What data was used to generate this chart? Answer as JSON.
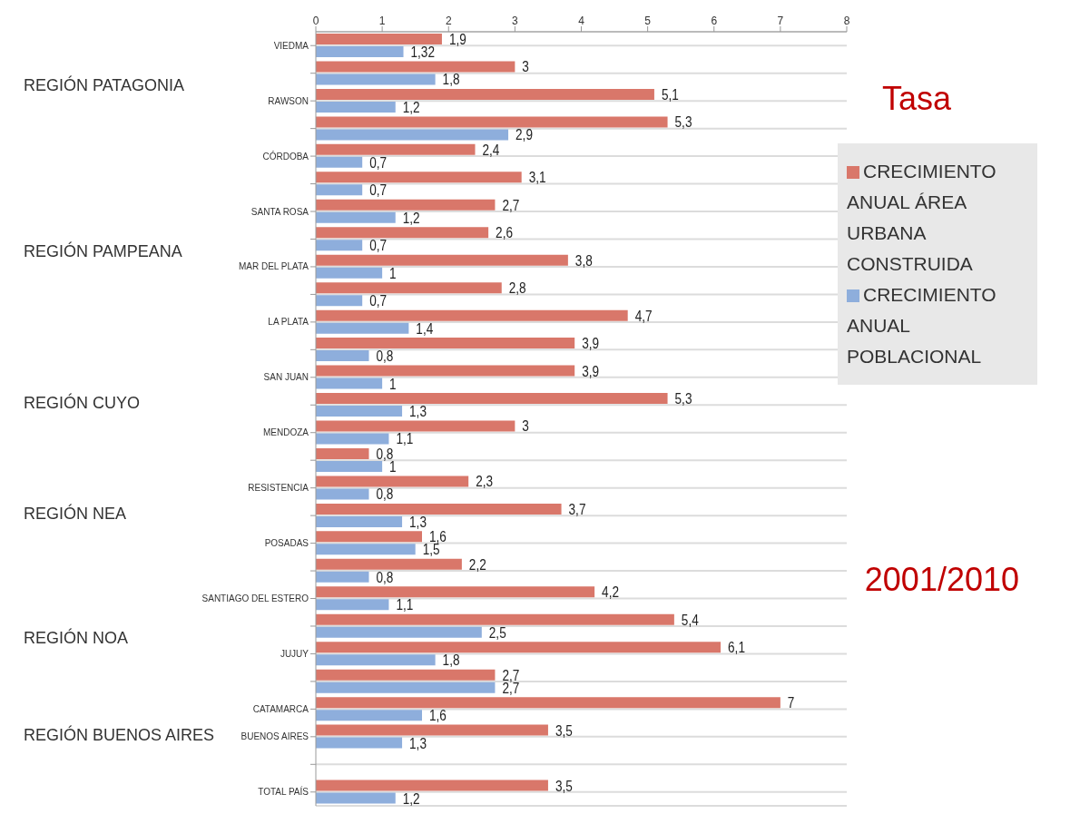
{
  "chart_data": {
    "type": "bar",
    "orientation": "horizontal",
    "categories": [
      "VIEDMA",
      null,
      "RAWSON",
      null,
      "CÓRDOBA",
      null,
      "SANTA ROSA",
      null,
      "MAR DEL PLATA",
      null,
      "LA PLATA",
      null,
      "SAN JUAN",
      null,
      "MENDOZA",
      null,
      "RESISTENCIA",
      null,
      "POSADAS",
      null,
      "SANTIAGO DEL ESTERO",
      null,
      "JUJUY",
      null,
      "CATAMARCA",
      "BUENOS AIRES",
      null,
      "TOTAL PAÍS"
    ],
    "series": [
      {
        "name": "CRECIMIENTO ANUAL ÁREA URBANA CONSTRUIDA",
        "color": "#d9776a",
        "values": [
          1.9,
          3,
          5.1,
          5.3,
          2.4,
          3.1,
          2.7,
          2.6,
          3.8,
          2.8,
          4.7,
          3.9,
          3.9,
          5.3,
          3,
          0.8,
          2.3,
          3.7,
          1.6,
          2.2,
          4.2,
          5.4,
          6.1,
          2.7,
          7,
          3.5,
          null,
          3.5
        ],
        "value_labels": [
          "1,9",
          "3",
          "5,1",
          "5,3",
          "2,4",
          "3,1",
          "2,7",
          "2,6",
          "3,8",
          "2,8",
          "4,7",
          "3,9",
          "3,9",
          "5,3",
          "3",
          "0,8",
          "2,3",
          "3,7",
          "1,6",
          "2,2",
          "4,2",
          "5,4",
          "6,1",
          "2,7",
          "7",
          "3,5",
          null,
          "3,5"
        ]
      },
      {
        "name": "CRECIMIENTO ANUAL POBLACIONAL",
        "color": "#8eaedc",
        "values": [
          1.32,
          1.8,
          1.2,
          2.9,
          0.7,
          0.7,
          1.2,
          0.7,
          1,
          0.7,
          1.4,
          0.8,
          1,
          1.3,
          1.1,
          1,
          0.8,
          1.3,
          1.5,
          0.8,
          1.1,
          2.5,
          1.8,
          2.7,
          1.6,
          1.3,
          null,
          1.2
        ],
        "value_labels": [
          "1,32",
          "1,8",
          "1,2",
          "2,9",
          "0,7",
          "0,7",
          "1,2",
          "0,7",
          "1",
          "0,7",
          "1,4",
          "0,8",
          "1",
          "1,3",
          "1,1",
          "1",
          "0,8",
          "1,3",
          "1,5",
          "0,8",
          "1,1",
          "2,5",
          "1,8",
          "2,7",
          "1,6",
          "1,3",
          null,
          "1,2"
        ]
      }
    ],
    "xlim": [
      0,
      8
    ],
    "xticks": [
      0,
      1,
      2,
      3,
      4,
      5,
      6,
      7,
      8
    ],
    "grid": "y",
    "legend": "right",
    "legend_title": "Tasa",
    "annotations": [
      "REGIÓN PATAGONIA",
      "REGIÓN PAMPEANA",
      "REGIÓN CUYO",
      "REGIÓN NEA",
      "REGIÓN NOA",
      "REGIÓN BUENOS AIRES",
      "2001/2010"
    ]
  }
}
